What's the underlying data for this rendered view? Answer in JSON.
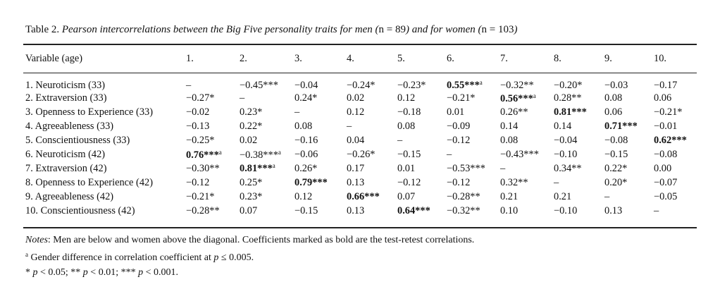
{
  "caption": {
    "label": "Table 2.",
    "title_before_n1": "Pearson intercorrelations between the Big Five personality traits for men (",
    "n1": "n = 89",
    "title_between": ") and for women (",
    "n2": "n = 103",
    "title_end": ")"
  },
  "header": {
    "variable": "Variable (age)",
    "columns": [
      "1.",
      "2.",
      "3.",
      "4.",
      "5.",
      "6.",
      "7.",
      "8.",
      "9.",
      "10."
    ]
  },
  "rows": [
    {
      "label": "1. Neuroticism (33)",
      "cells": [
        {
          "v": "–"
        },
        {
          "v": "−0.45***"
        },
        {
          "v": "−0.04"
        },
        {
          "v": "−0.24*"
        },
        {
          "v": "−0.23*"
        },
        {
          "v": "0.55***",
          "bold": true,
          "sup": "a"
        },
        {
          "v": "−0.32**"
        },
        {
          "v": "−0.20*"
        },
        {
          "v": "−0.03"
        },
        {
          "v": "−0.17"
        }
      ]
    },
    {
      "label": "2. Extraversion (33)",
      "cells": [
        {
          "v": "−0.27*"
        },
        {
          "v": "–"
        },
        {
          "v": "0.24*"
        },
        {
          "v": "0.02"
        },
        {
          "v": "0.12"
        },
        {
          "v": "−0.21*"
        },
        {
          "v": "0.56***",
          "bold": true,
          "sup": "a"
        },
        {
          "v": "0.28**"
        },
        {
          "v": "0.08"
        },
        {
          "v": "0.06"
        }
      ]
    },
    {
      "label": "3. Openness to Experience (33)",
      "cells": [
        {
          "v": "−0.02"
        },
        {
          "v": "0.23*"
        },
        {
          "v": "–"
        },
        {
          "v": "0.12"
        },
        {
          "v": "−0.18"
        },
        {
          "v": "0.01"
        },
        {
          "v": "0.26**"
        },
        {
          "v": "0.81***",
          "bold": true
        },
        {
          "v": "0.06"
        },
        {
          "v": "−0.21*"
        }
      ]
    },
    {
      "label": "4. Agreeableness (33)",
      "cells": [
        {
          "v": "−0.13"
        },
        {
          "v": "0.22*"
        },
        {
          "v": "0.08"
        },
        {
          "v": "–"
        },
        {
          "v": "0.08"
        },
        {
          "v": "−0.09"
        },
        {
          "v": "0.14"
        },
        {
          "v": "0.14"
        },
        {
          "v": "0.71***",
          "bold": true
        },
        {
          "v": "−0.01"
        }
      ]
    },
    {
      "label": "5. Conscientiousness (33)",
      "cells": [
        {
          "v": "−0.25*"
        },
        {
          "v": "0.02"
        },
        {
          "v": "−0.16"
        },
        {
          "v": "0.04"
        },
        {
          "v": "–"
        },
        {
          "v": "−0.12"
        },
        {
          "v": "0.08"
        },
        {
          "v": "−0.04"
        },
        {
          "v": "−0.08"
        },
        {
          "v": "0.62***",
          "bold": true
        }
      ]
    },
    {
      "label": "6. Neuroticism (42)",
      "cells": [
        {
          "v": "0.76***",
          "bold": true,
          "sup": "a"
        },
        {
          "v": "−0.38***",
          "sup": "a"
        },
        {
          "v": "−0.06"
        },
        {
          "v": "−0.26*"
        },
        {
          "v": "−0.15"
        },
        {
          "v": "–"
        },
        {
          "v": "−0.43***"
        },
        {
          "v": "−0.10"
        },
        {
          "v": "−0.15"
        },
        {
          "v": "−0.08"
        }
      ]
    },
    {
      "label": "7. Extraversion (42)",
      "cells": [
        {
          "v": "−0.30**"
        },
        {
          "v": "0.81***",
          "bold": true,
          "sup": "a"
        },
        {
          "v": "0.26*"
        },
        {
          "v": "0.17"
        },
        {
          "v": "0.01"
        },
        {
          "v": "−0.53***"
        },
        {
          "v": "–"
        },
        {
          "v": "0.34**"
        },
        {
          "v": "0.22*"
        },
        {
          "v": "0.00"
        }
      ]
    },
    {
      "label": "8. Openness to Experience (42)",
      "cells": [
        {
          "v": "−0.12"
        },
        {
          "v": "0.25*"
        },
        {
          "v": "0.79***",
          "bold": true
        },
        {
          "v": "0.13"
        },
        {
          "v": "−0.12"
        },
        {
          "v": "−0.12"
        },
        {
          "v": "0.32**"
        },
        {
          "v": "–"
        },
        {
          "v": "0.20*"
        },
        {
          "v": "−0.07"
        }
      ]
    },
    {
      "label": "9. Agreeableness (42)",
      "cells": [
        {
          "v": "−0.21*"
        },
        {
          "v": "0.23*"
        },
        {
          "v": "0.12"
        },
        {
          "v": "0.66***",
          "bold": true
        },
        {
          "v": "0.07"
        },
        {
          "v": "−0.28**"
        },
        {
          "v": "0.21"
        },
        {
          "v": "0.21"
        },
        {
          "v": "–"
        },
        {
          "v": "−0.05"
        }
      ]
    },
    {
      "label": "10. Conscientiousness (42)",
      "cells": [
        {
          "v": "−0.28**"
        },
        {
          "v": "0.07"
        },
        {
          "v": "−0.15"
        },
        {
          "v": "0.13"
        },
        {
          "v": "0.64***",
          "bold": true
        },
        {
          "v": "−0.32**"
        },
        {
          "v": "0.10"
        },
        {
          "v": "−0.10"
        },
        {
          "v": "0.13"
        },
        {
          "v": "–"
        }
      ]
    }
  ],
  "notes": {
    "label": "Notes",
    "text": ": Men are below and women above the diagonal. Coefficients marked as bold are the test-retest correlations.",
    "footnote_a_marker": "a",
    "footnote_a_text_before": " Gender difference in correlation coefficient at ",
    "footnote_a_p": "p",
    "footnote_a_text_after": " ≤ 0.005.",
    "sig_1_star": "* ",
    "sig_1_text": " < 0.05; ** ",
    "sig_2_text": " < 0.01; *** ",
    "sig_3_text": " < 0.001.",
    "p": "p"
  }
}
